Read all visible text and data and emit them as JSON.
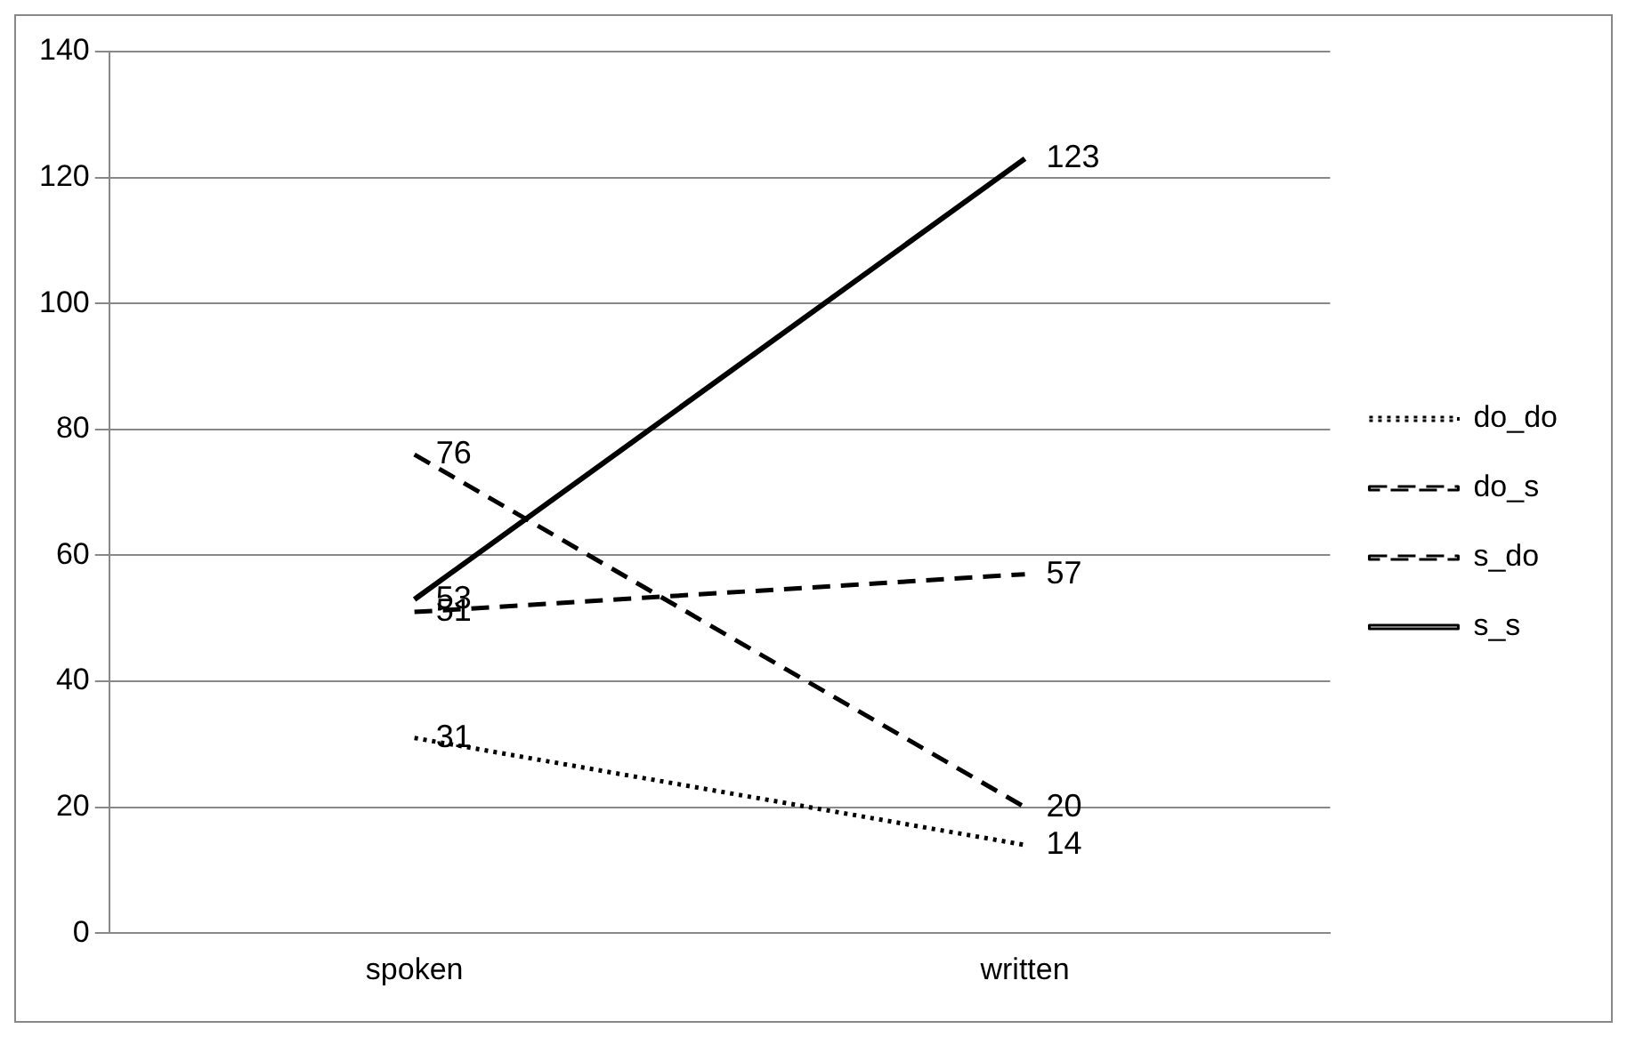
{
  "chart_data": {
    "type": "line",
    "categories": [
      "spoken",
      "written"
    ],
    "series": [
      {
        "name": "do_do",
        "color": "#000000",
        "line_style": "dotted",
        "values": [
          31,
          14
        ]
      },
      {
        "name": "do_s",
        "color": "#000000",
        "line_style": "dashed",
        "values": [
          51,
          57
        ]
      },
      {
        "name": "s_do",
        "color": "#000000",
        "line_style": "dashed",
        "values": [
          76,
          20
        ]
      },
      {
        "name": "s_s",
        "color": "#000000",
        "line_style": "solid",
        "values": [
          53,
          123
        ]
      }
    ],
    "ylim": [
      0,
      140
    ],
    "yticks": [
      0,
      20,
      40,
      60,
      80,
      100,
      120,
      140
    ],
    "grid": "y",
    "legend": "right",
    "data_labels": true,
    "marker": "none"
  }
}
